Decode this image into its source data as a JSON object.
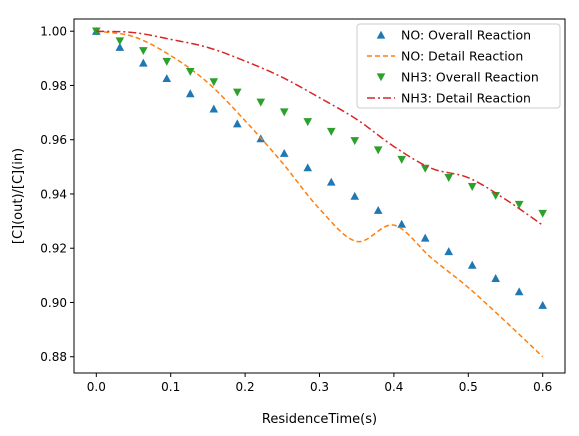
{
  "chart_data": {
    "type": "scatter",
    "xlabel": "ResidenceTime(s)",
    "ylabel": "[C](out)/[C](in)",
    "xlim": [
      -0.03,
      0.63
    ],
    "ylim": [
      0.874,
      1.0045
    ],
    "xticks": [
      0.0,
      0.1,
      0.2,
      0.3,
      0.4,
      0.5,
      0.6
    ],
    "xtick_labels": [
      "0.0",
      "0.1",
      "0.2",
      "0.3",
      "0.4",
      "0.5",
      "0.6"
    ],
    "yticks": [
      0.88,
      0.9,
      0.92,
      0.94,
      0.96,
      0.98,
      1.0
    ],
    "ytick_labels": [
      "0.88",
      "0.90",
      "0.92",
      "0.94",
      "0.96",
      "0.98",
      "1.00"
    ],
    "grid": false,
    "legend_position": "top-right",
    "series": [
      {
        "name": "NO: Overall Reaction",
        "kind": "markers",
        "marker": "triangle-up",
        "color": "#1f77b4",
        "x": [
          0.0,
          0.0316,
          0.0632,
          0.0947,
          0.1263,
          0.1579,
          0.1895,
          0.2211,
          0.2526,
          0.2842,
          0.3158,
          0.3474,
          0.3789,
          0.4105,
          0.4421,
          0.4737,
          0.5053,
          0.5368,
          0.5684,
          0.6
        ],
        "y": [
          1.0,
          0.9941,
          0.9883,
          0.9826,
          0.977,
          0.9714,
          0.9659,
          0.9604,
          0.955,
          0.9497,
          0.9444,
          0.9392,
          0.934,
          0.9289,
          0.9238,
          0.9188,
          0.9138,
          0.9089,
          0.904,
          0.899
        ]
      },
      {
        "name": "NO: Detail Reaction",
        "kind": "line",
        "dash": "dashed",
        "color": "#ff7f0e",
        "x": [
          0.0,
          0.05,
          0.1,
          0.15,
          0.2,
          0.25,
          0.3,
          0.35,
          0.4,
          0.45,
          0.5,
          0.55,
          0.6
        ],
        "y": [
          1.0,
          0.998,
          0.991,
          0.981,
          0.967,
          0.9515,
          0.9345,
          0.9225,
          0.9285,
          0.9165,
          0.9055,
          0.893,
          0.88
        ]
      },
      {
        "name": "NH3: Overall Reaction",
        "kind": "markers",
        "marker": "triangle-down",
        "color": "#2ca02c",
        "x": [
          0.0,
          0.0316,
          0.0632,
          0.0947,
          0.1263,
          0.1579,
          0.1895,
          0.2211,
          0.2526,
          0.2842,
          0.3158,
          0.3474,
          0.3789,
          0.4105,
          0.4421,
          0.4737,
          0.5053,
          0.5368,
          0.5684,
          0.6
        ],
        "y": [
          1.0,
          0.9964,
          0.9928,
          0.9888,
          0.9851,
          0.9813,
          0.9775,
          0.9738,
          0.9702,
          0.9666,
          0.963,
          0.9596,
          0.9562,
          0.9527,
          0.9494,
          0.946,
          0.9427,
          0.9394,
          0.9361,
          0.9328
        ]
      },
      {
        "name": "NH3: Detail Reaction",
        "kind": "line",
        "dash": "dashdot",
        "color": "#d62728",
        "x": [
          0.0,
          0.05,
          0.1,
          0.15,
          0.2,
          0.25,
          0.3,
          0.35,
          0.4,
          0.45,
          0.5,
          0.55,
          0.6
        ],
        "y": [
          1.0,
          0.9995,
          0.997,
          0.994,
          0.989,
          0.983,
          0.9755,
          0.9675,
          0.9575,
          0.9495,
          0.946,
          0.938,
          0.9285
        ]
      }
    ]
  }
}
